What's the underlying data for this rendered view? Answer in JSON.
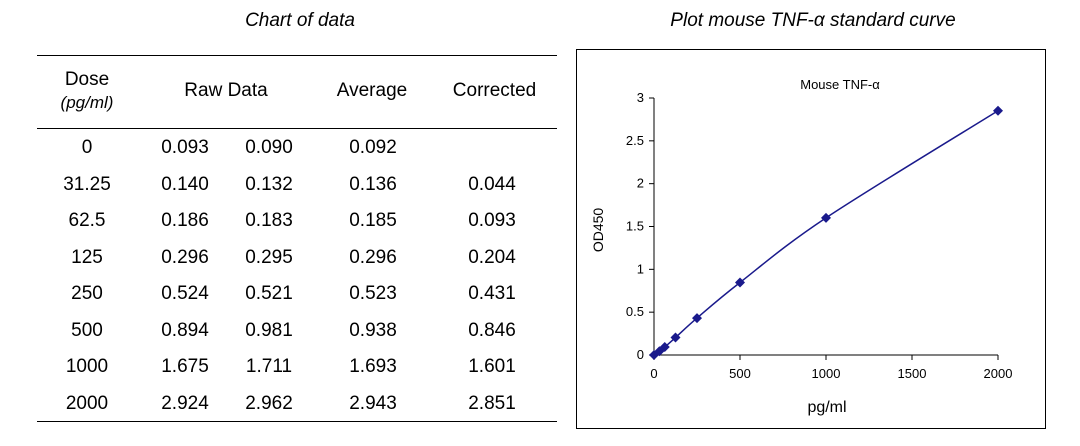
{
  "table_title": "Chart of data",
  "chart_title": "Plot mouse TNF-α standard curve",
  "table": {
    "headers": {
      "dose": "Dose",
      "dose_unit": "(pg/ml)",
      "raw": "Raw Data",
      "average": "Average",
      "corrected": "Corrected"
    },
    "rows": [
      {
        "dose": "0",
        "raw1": "0.093",
        "raw2": "0.090",
        "average": "0.092",
        "corrected": ""
      },
      {
        "dose": "31.25",
        "raw1": "0.140",
        "raw2": "0.132",
        "average": "0.136",
        "corrected": "0.044"
      },
      {
        "dose": "62.5",
        "raw1": "0.186",
        "raw2": "0.183",
        "average": "0.185",
        "corrected": "0.093"
      },
      {
        "dose": "125",
        "raw1": "0.296",
        "raw2": "0.295",
        "average": "0.296",
        "corrected": "0.204"
      },
      {
        "dose": "250",
        "raw1": "0.524",
        "raw2": "0.521",
        "average": "0.523",
        "corrected": "0.431"
      },
      {
        "dose": "500",
        "raw1": "0.894",
        "raw2": "0.981",
        "average": "0.938",
        "corrected": "0.846"
      },
      {
        "dose": "1000",
        "raw1": "1.675",
        "raw2": "1.711",
        "average": "1.693",
        "corrected": "1.601"
      },
      {
        "dose": "2000",
        "raw1": "2.924",
        "raw2": "2.962",
        "average": "2.943",
        "corrected": "2.851"
      }
    ]
  },
  "chart_data": {
    "type": "scatter",
    "title": "Mouse TNF-α",
    "xlabel": "pg/ml",
    "ylabel": "OD450",
    "x": [
      0,
      31.25,
      62.5,
      125,
      250,
      500,
      1000,
      2000
    ],
    "y": [
      0,
      0.044,
      0.093,
      0.204,
      0.431,
      0.846,
      1.601,
      2.851
    ],
    "xlim": [
      0,
      2000
    ],
    "ylim": [
      0,
      3
    ],
    "xticks": [
      0,
      500,
      1000,
      1500,
      2000
    ],
    "yticks": [
      0,
      0.5,
      1,
      1.5,
      2,
      2.5,
      3
    ],
    "xtick_labels": [
      "0",
      "500",
      "1000",
      "1500",
      "2000"
    ],
    "ytick_labels": [
      "0",
      "0.5",
      "1",
      "1.5",
      "2",
      "2.5",
      "3"
    ],
    "marker": "diamond",
    "trendline": true,
    "grid": false,
    "legend": false,
    "colors": {
      "marker": "#1a1a8c",
      "line": "#1a1a8c",
      "axis": "#000000"
    }
  }
}
